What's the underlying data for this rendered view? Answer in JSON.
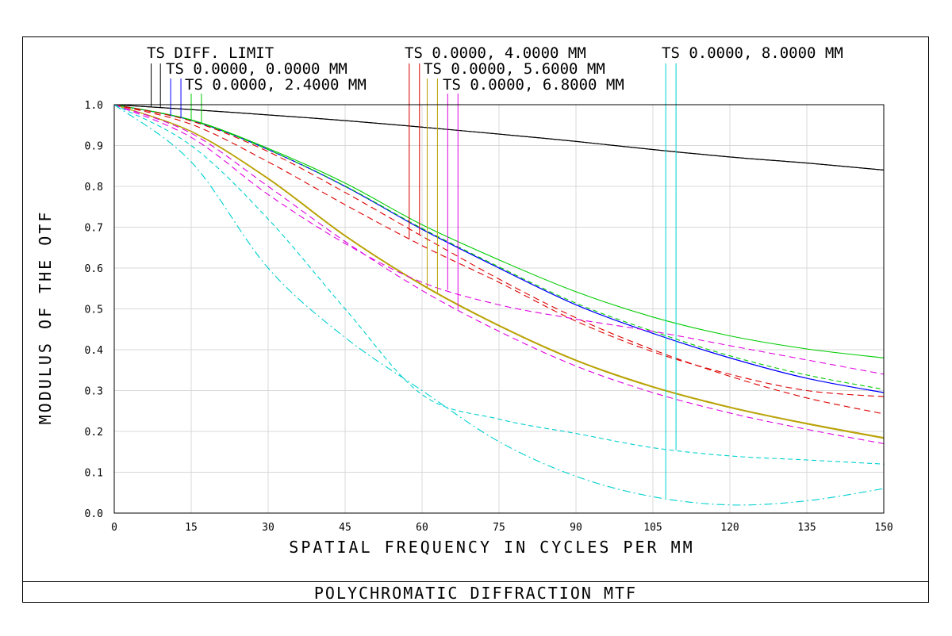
{
  "chart_data": {
    "type": "line",
    "title": "POLYCHROMATIC DIFFRACTION MTF",
    "xlabel": "SPATIAL FREQUENCY IN CYCLES PER MM",
    "ylabel": "MODULUS OF THE OTF",
    "xlim": [
      0,
      150
    ],
    "ylim": [
      0,
      1
    ],
    "grid": true,
    "x_ticks": [
      "0",
      "15",
      "30",
      "45",
      "60",
      "75",
      "90",
      "105",
      "120",
      "135",
      "150"
    ],
    "y_ticks": [
      "0.0",
      "0.1",
      "0.2",
      "0.3",
      "0.4",
      "0.5",
      "0.6",
      "0.7",
      "0.8",
      "0.9",
      "1.0"
    ],
    "legend": [
      {
        "label": "TS DIFF. LIMIT"
      },
      {
        "label": "TS 0.0000, 0.0000 MM"
      },
      {
        "label": "TS 0.0000, 2.4000 MM"
      },
      {
        "label": "TS 0.0000, 4.0000 MM"
      },
      {
        "label": "TS 0.0000, 5.6000 MM"
      },
      {
        "label": "TS 0.0000, 6.8000 MM"
      },
      {
        "label": "TS 0.0000, 8.0000 MM"
      }
    ],
    "series": [
      {
        "name": "DIFF LIMIT T",
        "color": "#000000",
        "dash": "",
        "x": [
          0,
          15,
          30,
          45,
          60,
          75,
          90,
          105,
          120,
          135,
          150
        ],
        "y": [
          1.0,
          0.988,
          0.975,
          0.961,
          0.945,
          0.928,
          0.91,
          0.89,
          0.872,
          0.857,
          0.84
        ]
      },
      {
        "name": "DIFF LIMIT S",
        "color": "#000000",
        "dash": "",
        "x": [
          0,
          15,
          30,
          45,
          60,
          75,
          90,
          105,
          120,
          135,
          150
        ],
        "y": [
          1.0,
          0.988,
          0.975,
          0.961,
          0.945,
          0.928,
          0.91,
          0.89,
          0.872,
          0.857,
          0.84
        ]
      },
      {
        "name": "0.0000 MM T",
        "color": "#0000ff",
        "dash": "",
        "x": [
          0,
          15,
          30,
          45,
          60,
          75,
          90,
          105,
          120,
          135,
          150
        ],
        "y": [
          1.0,
          0.962,
          0.89,
          0.8,
          0.695,
          0.6,
          0.51,
          0.44,
          0.38,
          0.33,
          0.295
        ]
      },
      {
        "name": "0.0000 MM S",
        "color": "#0000ff",
        "dash": "",
        "x": [
          0,
          15,
          30,
          45,
          60,
          75,
          90,
          105,
          120,
          135,
          150
        ],
        "y": [
          1.0,
          0.962,
          0.89,
          0.8,
          0.695,
          0.6,
          0.51,
          0.44,
          0.38,
          0.33,
          0.295
        ]
      },
      {
        "name": "2.4000 MM T",
        "color": "#00cc00",
        "dash": "",
        "x": [
          0,
          15,
          30,
          45,
          60,
          75,
          90,
          105,
          120,
          135,
          150
        ],
        "y": [
          1.0,
          0.963,
          0.893,
          0.808,
          0.706,
          0.62,
          0.542,
          0.48,
          0.434,
          0.402,
          0.38
        ]
      },
      {
        "name": "2.4000 MM S",
        "color": "#00cc00",
        "dash": "6,4",
        "x": [
          0,
          15,
          30,
          45,
          60,
          75,
          90,
          105,
          120,
          135,
          150
        ],
        "y": [
          1.0,
          0.962,
          0.89,
          0.801,
          0.697,
          0.603,
          0.514,
          0.445,
          0.385,
          0.338,
          0.303
        ]
      },
      {
        "name": "4.0000 MM T",
        "color": "#dd0000",
        "dash": "8,5",
        "x": [
          0,
          15,
          30,
          45,
          60,
          75,
          90,
          105,
          120,
          135,
          150
        ],
        "y": [
          1.0,
          0.952,
          0.86,
          0.755,
          0.655,
          0.565,
          0.47,
          0.395,
          0.34,
          0.3,
          0.285
        ]
      },
      {
        "name": "4.0000 MM S",
        "color": "#dd0000",
        "dash": "8,5",
        "x": [
          0,
          15,
          30,
          45,
          60,
          75,
          90,
          105,
          120,
          135,
          150
        ],
        "y": [
          1.0,
          0.96,
          0.885,
          0.785,
          0.678,
          0.573,
          0.478,
          0.4,
          0.335,
          0.282,
          0.243
        ]
      },
      {
        "name": "5.6000 MM T",
        "color": "#b8a000",
        "dash": "",
        "x": [
          0,
          15,
          30,
          45,
          60,
          75,
          90,
          105,
          120,
          135,
          150
        ],
        "y": [
          1.0,
          0.935,
          0.82,
          0.68,
          0.56,
          0.46,
          0.375,
          0.31,
          0.26,
          0.22,
          0.185
        ]
      },
      {
        "name": "5.6000 MM S",
        "color": "#b8a000",
        "dash": "",
        "x": [
          0,
          15,
          30,
          45,
          60,
          75,
          90,
          105,
          120,
          135,
          150
        ],
        "y": [
          1.0,
          0.934,
          0.818,
          0.678,
          0.558,
          0.458,
          0.373,
          0.308,
          0.258,
          0.218,
          0.183
        ]
      },
      {
        "name": "6.8000 MM T",
        "color": "#e000e0",
        "dash": "8,5",
        "x": [
          0,
          15,
          30,
          45,
          60,
          75,
          90,
          105,
          120,
          135,
          150
        ],
        "y": [
          1.0,
          0.92,
          0.78,
          0.66,
          0.565,
          0.51,
          0.475,
          0.445,
          0.41,
          0.375,
          0.34
        ]
      },
      {
        "name": "6.8000 MM S",
        "color": "#e000e0",
        "dash": "8,5",
        "x": [
          0,
          15,
          30,
          45,
          60,
          75,
          90,
          105,
          120,
          135,
          150
        ],
        "y": [
          1.0,
          0.93,
          0.8,
          0.665,
          0.545,
          0.445,
          0.36,
          0.295,
          0.245,
          0.205,
          0.17
        ]
      },
      {
        "name": "8.0000 MM T",
        "color": "#00d0d0",
        "dash": "10,4,2,4",
        "x": [
          0,
          15,
          30,
          45,
          60,
          75,
          90,
          105,
          120,
          135,
          150
        ],
        "y": [
          1.0,
          0.86,
          0.6,
          0.43,
          0.3,
          0.175,
          0.09,
          0.04,
          0.02,
          0.03,
          0.06
        ]
      },
      {
        "name": "8.0000 MM S",
        "color": "#00d0d0",
        "dash": "6,4",
        "x": [
          0,
          15,
          30,
          45,
          60,
          75,
          90,
          105,
          120,
          135,
          150
        ],
        "y": [
          1.0,
          0.9,
          0.72,
          0.5,
          0.29,
          0.23,
          0.195,
          0.16,
          0.14,
          0.13,
          0.12
        ]
      }
    ]
  }
}
